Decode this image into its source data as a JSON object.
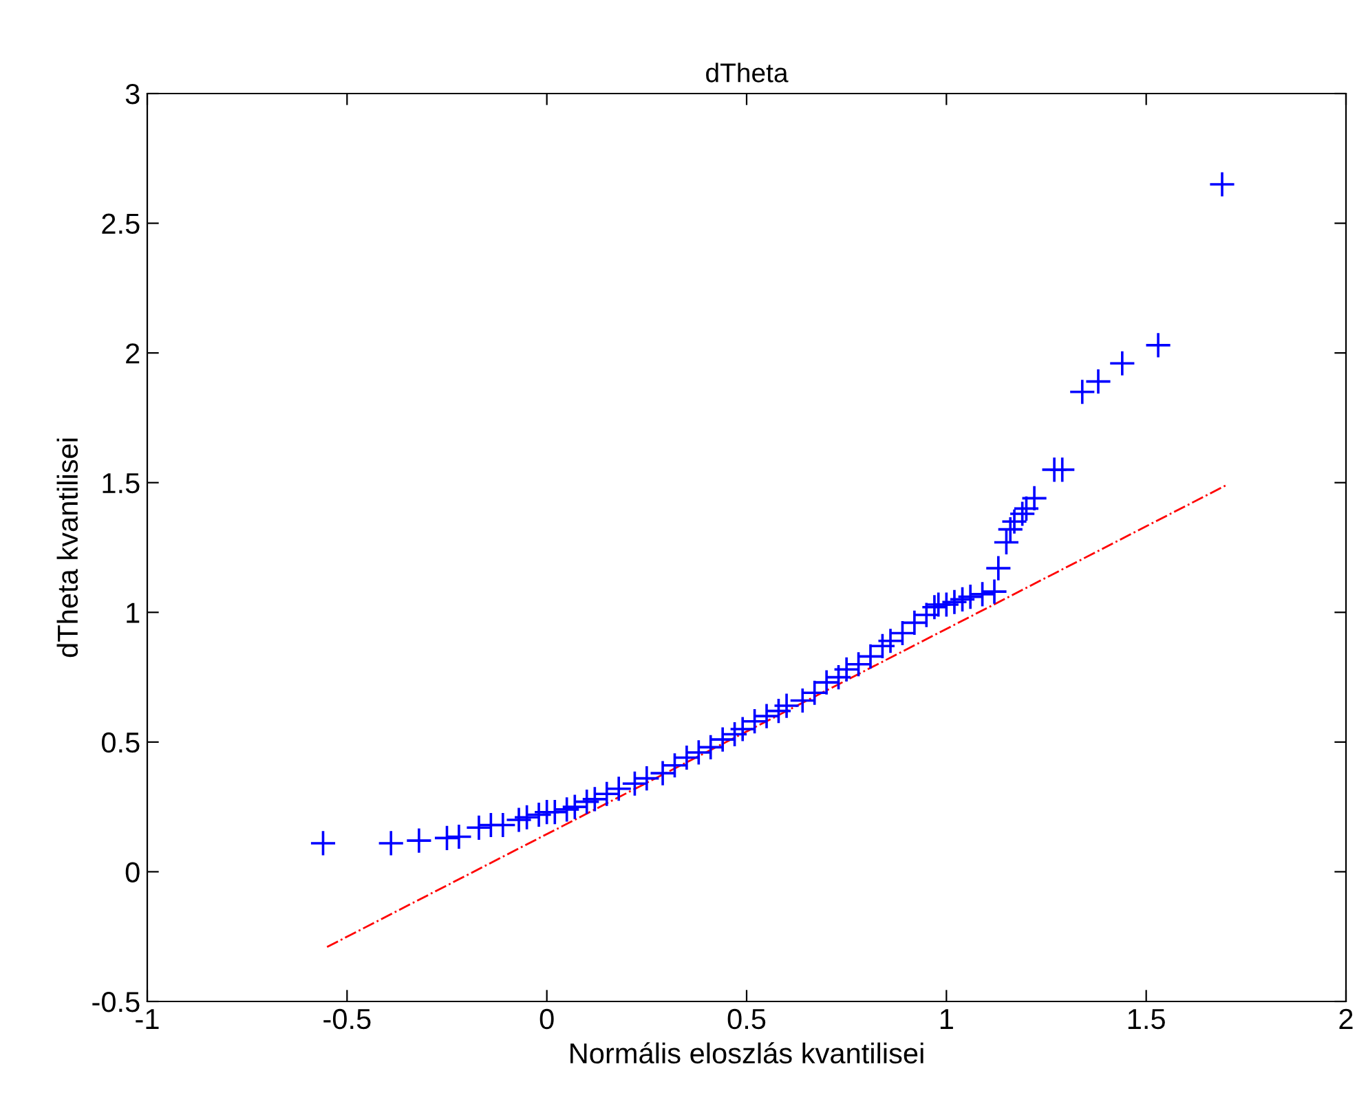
{
  "chart_data": {
    "type": "scatter",
    "title": "dTheta",
    "xlabel": "Normális eloszlás kvantilisei",
    "ylabel": "dTheta kvantilisei",
    "xlim": [
      -1,
      2
    ],
    "xticks": [
      -1,
      -0.5,
      0,
      0.5,
      1,
      1.5,
      2
    ],
    "ylim": [
      -0.5,
      3
    ],
    "yticks": [
      -0.5,
      0,
      0.5,
      1,
      1.5,
      2,
      2.5,
      3
    ],
    "grid": false,
    "series": [
      {
        "marker": "cross",
        "color": "#0000ff",
        "x": [
          -0.56,
          -0.39,
          -0.32,
          -0.25,
          -0.22,
          -0.17,
          -0.14,
          -0.11,
          -0.07,
          -0.05,
          -0.02,
          0.0,
          0.02,
          0.05,
          0.07,
          0.1,
          0.12,
          0.15,
          0.18,
          0.22,
          0.25,
          0.29,
          0.32,
          0.35,
          0.38,
          0.41,
          0.44,
          0.47,
          0.49,
          0.52,
          0.55,
          0.58,
          0.6,
          0.64,
          0.67,
          0.7,
          0.73,
          0.75,
          0.78,
          0.81,
          0.84,
          0.86,
          0.89,
          0.92,
          0.95,
          0.97,
          0.98,
          1.0,
          1.02,
          1.04,
          1.06,
          1.09,
          1.12,
          1.13,
          1.15,
          1.16,
          1.17,
          1.19,
          1.2,
          1.22,
          1.27,
          1.29,
          1.34,
          1.38,
          1.44,
          1.53,
          1.69
        ],
        "values": [
          0.11,
          0.11,
          0.12,
          0.13,
          0.135,
          0.17,
          0.18,
          0.18,
          0.2,
          0.21,
          0.22,
          0.23,
          0.23,
          0.24,
          0.25,
          0.27,
          0.28,
          0.3,
          0.32,
          0.34,
          0.36,
          0.38,
          0.41,
          0.44,
          0.46,
          0.48,
          0.51,
          0.53,
          0.55,
          0.58,
          0.6,
          0.62,
          0.64,
          0.66,
          0.69,
          0.73,
          0.75,
          0.78,
          0.8,
          0.83,
          0.87,
          0.89,
          0.92,
          0.96,
          0.99,
          1.02,
          1.03,
          1.03,
          1.04,
          1.05,
          1.06,
          1.07,
          1.08,
          1.17,
          1.27,
          1.32,
          1.35,
          1.38,
          1.4,
          1.44,
          1.55,
          1.55,
          1.85,
          1.89,
          1.96,
          2.03,
          2.65
        ]
      },
      {
        "type": "line",
        "line_style": "dashdot",
        "color": "#ff0000",
        "x": [
          -0.55,
          1.7
        ],
        "values": [
          -0.29,
          1.49
        ]
      }
    ]
  }
}
